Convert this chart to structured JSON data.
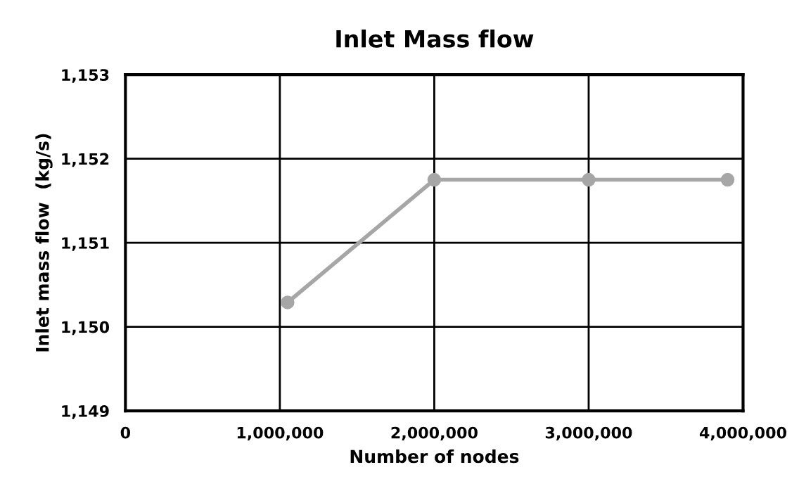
{
  "chart_data": {
    "type": "line",
    "title": "Inlet Mass flow",
    "xlabel": "Number of nodes",
    "ylabel": "Inlet mass flow  (kg/s)",
    "series": [
      {
        "color": "#a6a6a6",
        "x": [
          1050000,
          2000000,
          3000000,
          3900000
        ],
        "values": [
          1150.29,
          1151.75,
          1151.75,
          1151.75
        ]
      }
    ],
    "xlim": [
      0,
      4000000
    ],
    "xticks": [
      0,
      {
        "value": 1000000,
        "label": "1,000,000"
      },
      {
        "value": 2000000,
        "label": "2,000,000"
      },
      {
        "value": 3000000,
        "label": "3,000,000"
      },
      {
        "value": 4000000,
        "label": "4,000,000"
      }
    ],
    "ylim": [
      1149,
      1153
    ],
    "yticks": [
      {
        "value": 1149,
        "label": "1,149"
      },
      {
        "value": 1150,
        "label": "1,150"
      },
      {
        "value": 1151,
        "label": "1,151"
      },
      {
        "value": 1152,
        "label": "1,152"
      },
      {
        "value": 1153,
        "label": "1,153"
      }
    ],
    "grid": true,
    "marker": "circle",
    "line_style": "solid"
  }
}
